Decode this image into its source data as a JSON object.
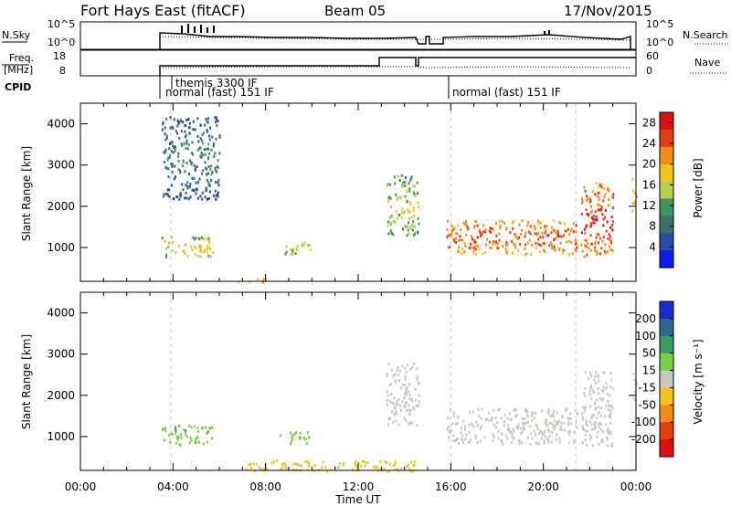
{
  "header": {
    "station": "Fort Hays East (fitACF)",
    "beam": "Beam 05",
    "date": "17/Nov/2015"
  },
  "strip_plots": {
    "nsky_label": "N.Sky",
    "nsky_ticks": [
      "10^5",
      "10^0"
    ],
    "nsearch_label": "N.Search",
    "nsearch_ticks": [
      "10^5",
      "10^0"
    ],
    "freq_label_1": "Freq.",
    "freq_label_2": "[MHz]",
    "freq_ticks": [
      "18",
      "8"
    ],
    "nave_label": "Nave",
    "nave_ticks": [
      "60",
      "0"
    ],
    "cpid_label": "CPID",
    "cpid_entries": [
      "themis 3300 IF",
      "normal (fast) 151 IF",
      "normal (fast) 151 IF"
    ]
  },
  "chart_data": [
    {
      "type": "heatmap",
      "panel": "power",
      "ylabel": "Slant Range [km]",
      "xlabel": "",
      "x_range_hours": [
        0,
        24
      ],
      "ylim": [
        180,
        4500
      ],
      "yticks": [
        1000,
        2000,
        3000,
        4000
      ],
      "colorbar_label": "Power [dB]",
      "colorbar_ticks": [
        4,
        8,
        12,
        16,
        20,
        24,
        28
      ],
      "colorbar_range": [
        0,
        30
      ],
      "colorbar_colors": [
        "#0a1cf0",
        "#2a4aa8",
        "#3d6f6a",
        "#3f9560",
        "#b7d24a",
        "#f2c41a",
        "#f58a14",
        "#ea3a10",
        "#e01010"
      ],
      "echo_regions": [
        {
          "t": [
            3.5,
            5.7
          ],
          "r": [
            800,
            1300
          ],
          "power": 16
        },
        {
          "t": [
            8.6,
            9.9
          ],
          "r": [
            850,
            1150
          ],
          "power": 14
        },
        {
          "t": [
            6.8,
            8.0
          ],
          "r": [
            180,
            280
          ],
          "power": 22
        },
        {
          "t": [
            13.2,
            14.6
          ],
          "r": [
            1300,
            2800
          ],
          "power": 14
        },
        {
          "t": [
            15.8,
            21.5
          ],
          "r": [
            850,
            1700
          ],
          "power": 22
        },
        {
          "t": [
            21.6,
            23.0
          ],
          "r": [
            800,
            2600
          ],
          "power": 24
        },
        {
          "t": [
            23.8,
            24.0
          ],
          "r": [
            1900,
            2700
          ],
          "power": 18
        },
        {
          "t": [
            3.5,
            6.0
          ],
          "r": [
            2200,
            4200
          ],
          "power": 8
        }
      ]
    },
    {
      "type": "heatmap",
      "panel": "velocity",
      "ylabel": "Slant Range [km]",
      "xlabel": "Time UT",
      "x_range_hours": [
        0,
        24
      ],
      "x_tick_labels": [
        "00:00",
        "04:00",
        "08:00",
        "12:00",
        "16:00",
        "20:00",
        "00:00"
      ],
      "ylim": [
        180,
        4500
      ],
      "yticks": [
        1000,
        2000,
        3000,
        4000
      ],
      "colorbar_label": "Velocity [m s⁻¹]",
      "colorbar_ticks": [
        "200",
        "100",
        "50",
        "15",
        "-15",
        "-50",
        "-100",
        "-200"
      ],
      "colorbar_range": [
        -250,
        250
      ],
      "colorbar_colors": [
        "#1a2ad8",
        "#2a6a90",
        "#3a9a60",
        "#7ad040",
        "#c8c8c0",
        "#f2c41a",
        "#f58a14",
        "#ea3a10",
        "#e01010"
      ],
      "echo_regions": [
        {
          "t": [
            3.5,
            5.7
          ],
          "r": [
            800,
            1300
          ],
          "velocity": 70
        },
        {
          "t": [
            8.6,
            9.9
          ],
          "r": [
            850,
            1150
          ],
          "velocity": 60
        },
        {
          "t": [
            7.0,
            14.5
          ],
          "r": [
            180,
            450
          ],
          "velocity": -40
        },
        {
          "t": [
            13.2,
            14.6
          ],
          "r": [
            1300,
            2800
          ],
          "velocity": 0
        },
        {
          "t": [
            15.8,
            21.5
          ],
          "r": [
            850,
            1700
          ],
          "velocity": 0
        },
        {
          "t": [
            21.6,
            23.0
          ],
          "r": [
            800,
            2600
          ],
          "velocity": 0
        },
        {
          "t": [
            23.8,
            24.0
          ],
          "r": [
            1900,
            2700
          ],
          "velocity": 0
        }
      ]
    }
  ]
}
